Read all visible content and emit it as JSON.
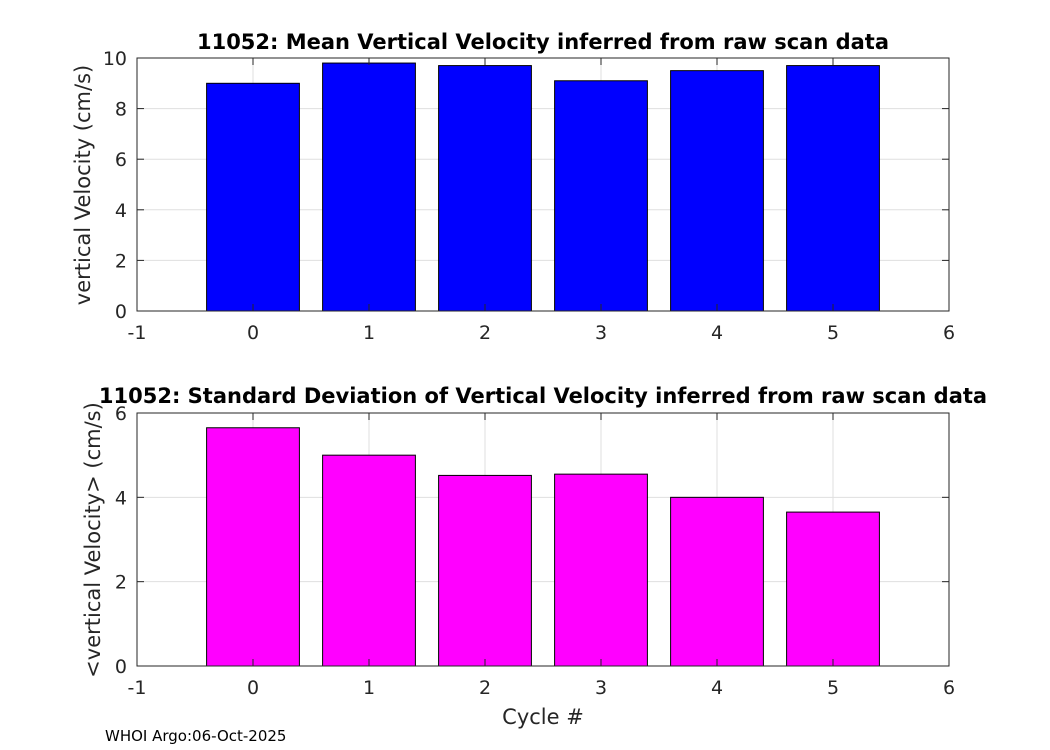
{
  "chart_data": [
    {
      "type": "bar",
      "title": "11052: Mean Vertical Velocity inferred from raw scan data",
      "xlabel": "",
      "ylabel": "vertical Velocity (cm/s)",
      "categories": [
        0,
        1,
        2,
        3,
        4,
        5
      ],
      "values": [
        9.0,
        9.8,
        9.7,
        9.1,
        9.5,
        9.7
      ],
      "color": "#0000ff",
      "xlim": [
        -1,
        6
      ],
      "ylim": [
        0,
        10
      ],
      "xticks": [
        "-1",
        "0",
        "1",
        "2",
        "3",
        "4",
        "5",
        "6"
      ],
      "yticks": [
        "0",
        "2",
        "4",
        "6",
        "8",
        "10"
      ],
      "grid": true
    },
    {
      "type": "bar",
      "title": "11052: Standard Deviation of Vertical Velocity inferred from raw scan data",
      "xlabel": "Cycle #",
      "ylabel": "<vertical Velocity> (cm/s)",
      "categories": [
        0,
        1,
        2,
        3,
        4,
        5
      ],
      "values": [
        5.65,
        5.0,
        4.52,
        4.55,
        4.0,
        3.65
      ],
      "color": "#ff00ff",
      "xlim": [
        -1,
        6
      ],
      "ylim": [
        0,
        6
      ],
      "xticks": [
        "-1",
        "0",
        "1",
        "2",
        "3",
        "4",
        "5",
        "6"
      ],
      "yticks": [
        "0",
        "2",
        "4",
        "6"
      ],
      "grid": true
    }
  ],
  "footer": "WHOI Argo:06-Oct-2025"
}
